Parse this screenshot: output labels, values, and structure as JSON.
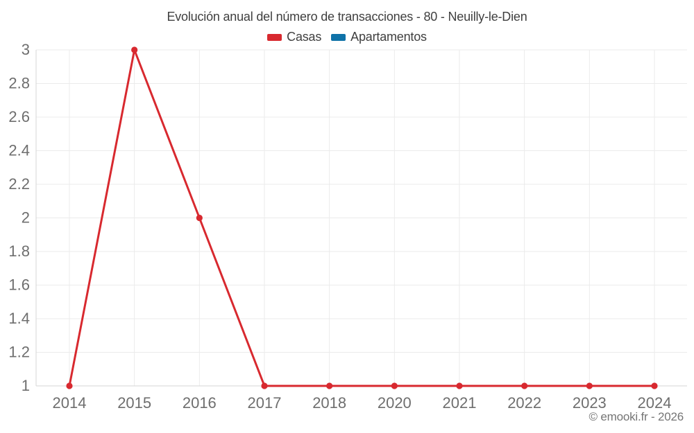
{
  "chart_data": {
    "type": "line",
    "title": "Evolución anual del número de transacciones - 80 - Neuilly-le-Dien",
    "categories": [
      "2014",
      "2015",
      "2016",
      "2017",
      "2018",
      "2020",
      "2021",
      "2022",
      "2023",
      "2024"
    ],
    "series": [
      {
        "name": "Casas",
        "color": "#d8292f",
        "values": [
          1,
          3,
          2,
          1,
          1,
          1,
          1,
          1,
          1,
          1
        ]
      },
      {
        "name": "Apartamentos",
        "color": "#0f72a8",
        "values": []
      }
    ],
    "xlabel": "",
    "ylabel": "",
    "ylim": [
      1,
      3
    ],
    "ytick_step": 0.2,
    "ytick_labels": [
      "1",
      "1.2",
      "1.4",
      "1.6",
      "1.8",
      "2",
      "2.2",
      "2.4",
      "2.6",
      "2.8",
      "3"
    ],
    "grid": true,
    "legend_position": "top",
    "footer": "© emooki.fr - 2026"
  },
  "style": {
    "grid_color": "#ebebeb",
    "axis_color": "#d6d6d6",
    "tick_label_color": "#6e6e6e",
    "title_color": "#3f3f3f",
    "background": "#ffffff",
    "point_radius": 4.6,
    "line_width": 3
  }
}
